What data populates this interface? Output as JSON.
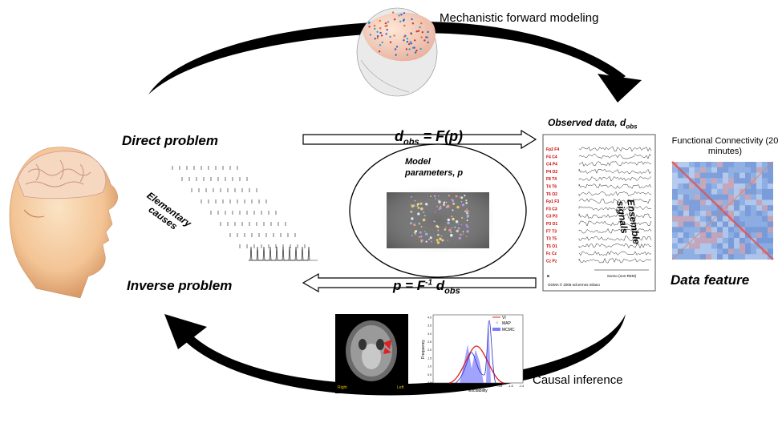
{
  "labels": {
    "mechanistic": "Mechanistic forward modeling",
    "direct_problem": "Direct problem",
    "inverse_problem": "Inverse problem",
    "data_feature": "Data feature",
    "causal_inference": "Causal inference",
    "observed_data": "Observed data, d",
    "observed_data_sub": "obs",
    "functional_connectivity": "Functional Connectivity (20 minutes)",
    "model_parameters": "Model parameters, p",
    "elementary_causes": "Elementary causes",
    "ensemble_signals": "Ensemble signals"
  },
  "equations": {
    "forward_d": "d",
    "forward_sub": "obs",
    "forward_rest": " = F(p)",
    "inverse_p": "p = F",
    "inverse_sup": "-1",
    "inverse_d": " d",
    "inverse_sub": "obs"
  },
  "eeg": {
    "channels": [
      "Fp2 F4",
      "F4 C4",
      "C4 P4",
      "P4 O2",
      "F8 T4",
      "T4 T6",
      "T6 O2",
      "Fp1 F3",
      "F3 C3",
      "C3 P3",
      "P3 O1",
      "F7 T3",
      "T3 T5",
      "T5 O1",
      "Fz Cz",
      "Cz Pz"
    ],
    "scale_label": "Sonno (non-REM)",
    "panel_letter": "a",
    "footer": "OOMA © 2006 edi.ermes milano"
  },
  "mri": {
    "left_label": "Right",
    "right_label": "Left"
  },
  "posterior_plot": {
    "legend": [
      "VI",
      "MAP",
      "MCMC"
    ],
    "xlabel": "Excitability",
    "ylabel": "Frequency",
    "xticks": [
      "-3.0",
      "-2.8",
      "-2.6",
      "-2.4",
      "-2.2",
      "-2.0",
      "-1.8",
      "-1.6",
      "-1.4"
    ],
    "yticks": [
      "0.0",
      "0.5",
      "1.0",
      "1.5",
      "2.0",
      "2.5",
      "3.0",
      "3.5",
      "4.0"
    ]
  },
  "colors": {
    "arrow": "#000000",
    "eeg_labels": "#cc0000",
    "vi": "#e02020",
    "mcmc": "#7b7bff"
  }
}
